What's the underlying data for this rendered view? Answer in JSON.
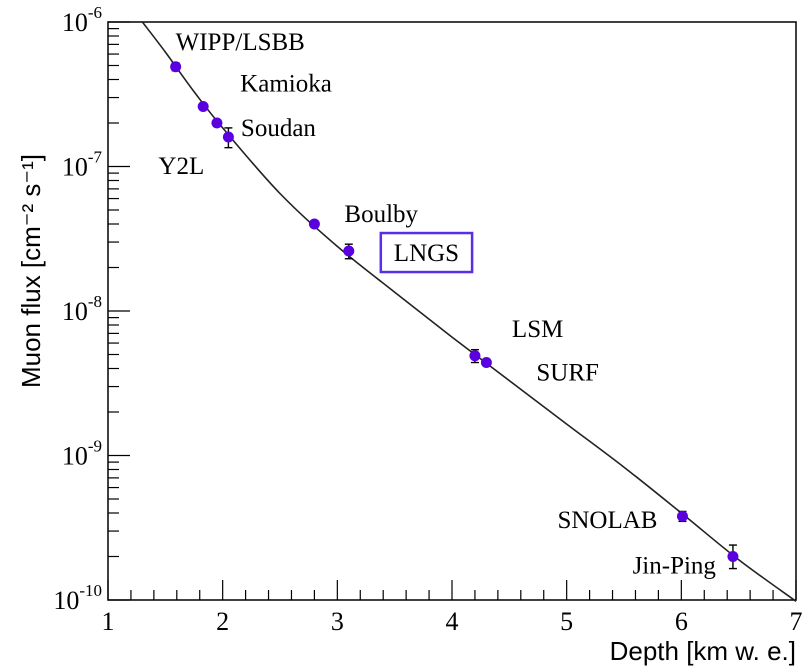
{
  "chart_data": {
    "type": "scatter",
    "title": "",
    "xlabel": "Depth [km w. e.]",
    "ylabel": "Muon flux [cm⁻² s⁻¹]",
    "xlim": [
      1,
      7
    ],
    "ylim": [
      1e-10,
      1e-06
    ],
    "yscale": "log",
    "grid": false,
    "x_ticks": [
      "1",
      "2",
      "3",
      "4",
      "5",
      "6",
      "7"
    ],
    "y_ticks": [
      {
        "base": "10",
        "exp": "-10"
      },
      {
        "base": "10",
        "exp": "-9"
      },
      {
        "base": "10",
        "exp": "-8"
      },
      {
        "base": "10",
        "exp": "-7"
      },
      {
        "base": "10",
        "exp": "-6"
      }
    ],
    "marker_color": "#5a00e0",
    "highlight_color": "#5a2ee6",
    "points": [
      {
        "label": "WIPP/LSBB",
        "x": 1.59,
        "y": 4.9e-07,
        "err_lo": 4.6e-07,
        "err_hi": 5.2e-07
      },
      {
        "label": "Kamioka",
        "x": 1.83,
        "y": 2.6e-07,
        "err_lo": 2.5e-07,
        "err_hi": 2.7e-07
      },
      {
        "label": "Soudan",
        "x": 1.95,
        "y": 2e-07,
        "err_lo": 1.9e-07,
        "err_hi": 2.1e-07
      },
      {
        "label": "Y2L",
        "x": 2.05,
        "y": 1.6e-07,
        "err_lo": 1.35e-07,
        "err_hi": 1.85e-07
      },
      {
        "label": "Boulby",
        "x": 2.8,
        "y": 4e-08,
        "err_lo": 3.8e-08,
        "err_hi": 4.2e-08
      },
      {
        "label": "LNGS",
        "x": 3.1,
        "y": 2.6e-08,
        "err_lo": 2.3e-08,
        "err_hi": 2.9e-08,
        "highlight": true
      },
      {
        "label": "LSM",
        "x": 4.2,
        "y": 4.9e-09,
        "err_lo": 4.4e-09,
        "err_hi": 5.4e-09
      },
      {
        "label": "SURF",
        "x": 4.3,
        "y": 4.4e-09,
        "err_lo": 4.2e-09,
        "err_hi": 4.6e-09
      },
      {
        "label": "SNOLAB",
        "x": 6.01,
        "y": 3.8e-10,
        "err_lo": 3.5e-10,
        "err_hi": 4.1e-10
      },
      {
        "label": "Jin-Ping",
        "x": 6.45,
        "y": 2e-10,
        "err_lo": 1.65e-10,
        "err_hi": 2.4e-10
      }
    ],
    "fit_curve": {
      "x": [
        1.3,
        1.5,
        1.75,
        2.0,
        2.5,
        3.0,
        3.5,
        4.0,
        4.5,
        5.0,
        5.5,
        6.0,
        6.5,
        7.0
      ],
      "y": [
        1e-06,
        6.2e-07,
        3.3e-07,
        1.85e-07,
        6.5e-08,
        2.8e-08,
        1.35e-08,
        6.6e-09,
        3.3e-09,
        1.65e-09,
        8.3e-10,
        4e-10,
        1.9e-10,
        9.8e-11
      ]
    }
  }
}
